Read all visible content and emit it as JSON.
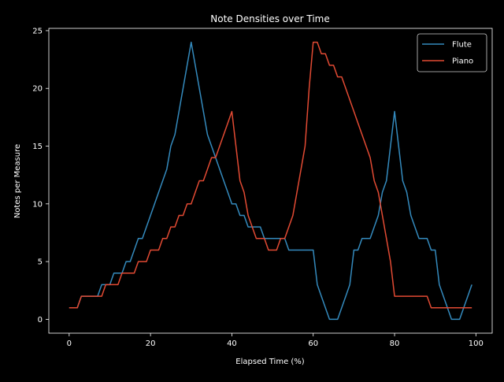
{
  "chart_data": {
    "type": "line",
    "title": "Note Densities over Time",
    "xlabel": "Elapsed Time (%)",
    "ylabel": "Notes per Measure",
    "xlim": [
      -5,
      104
    ],
    "ylim": [
      -1.2,
      25.2
    ],
    "xticks": [
      0,
      20,
      40,
      60,
      80,
      100
    ],
    "yticks": [
      0,
      5,
      10,
      15,
      20,
      25
    ],
    "grid": false,
    "legend": "top-right",
    "x": [
      0,
      1,
      2,
      3,
      4,
      5,
      6,
      7,
      8,
      9,
      10,
      11,
      12,
      13,
      14,
      15,
      16,
      17,
      18,
      19,
      20,
      21,
      22,
      23,
      24,
      25,
      26,
      27,
      28,
      29,
      30,
      31,
      32,
      33,
      34,
      35,
      36,
      37,
      38,
      39,
      40,
      41,
      42,
      43,
      44,
      45,
      46,
      47,
      48,
      49,
      50,
      51,
      52,
      53,
      54,
      55,
      56,
      57,
      58,
      59,
      60,
      61,
      62,
      63,
      64,
      65,
      66,
      67,
      68,
      69,
      70,
      71,
      72,
      73,
      74,
      75,
      76,
      77,
      78,
      79,
      80,
      81,
      82,
      83,
      84,
      85,
      86,
      87,
      88,
      89,
      90,
      91,
      92,
      93,
      94,
      95,
      96,
      97,
      98,
      99
    ],
    "series": [
      {
        "name": "Flute",
        "color": "#348abd",
        "values": [
          1,
          1,
          1,
          2,
          2,
          2,
          2,
          2,
          3,
          3,
          3,
          4,
          4,
          4,
          5,
          5,
          6,
          7,
          7,
          8,
          9,
          10,
          11,
          12,
          13,
          15,
          16,
          18,
          20,
          22,
          24,
          22,
          20,
          18,
          16,
          15,
          14,
          13,
          12,
          11,
          10,
          10,
          9,
          9,
          8,
          8,
          8,
          8,
          7,
          7,
          7,
          7,
          7,
          7,
          6,
          6,
          6,
          6,
          6,
          6,
          6,
          3,
          2,
          1,
          0,
          0,
          0,
          1,
          2,
          3,
          6,
          6,
          7,
          7,
          7,
          8,
          9,
          11,
          12,
          15,
          18,
          15,
          12,
          11,
          9,
          8,
          7,
          7,
          7,
          6,
          6,
          3,
          2,
          1,
          0,
          0,
          0,
          1,
          2,
          3
        ]
      },
      {
        "name": "Piano",
        "color": "#e24a33",
        "values": [
          1,
          1,
          1,
          2,
          2,
          2,
          2,
          2,
          2,
          3,
          3,
          3,
          3,
          4,
          4,
          4,
          4,
          5,
          5,
          5,
          6,
          6,
          6,
          7,
          7,
          8,
          8,
          9,
          9,
          10,
          10,
          11,
          12,
          12,
          13,
          14,
          14,
          15,
          16,
          17,
          18,
          15,
          12,
          11,
          9,
          8,
          7,
          7,
          7,
          6,
          6,
          6,
          7,
          7,
          8,
          9,
          11,
          13,
          15,
          20,
          24,
          24,
          23,
          23,
          22,
          22,
          21,
          21,
          20,
          19,
          18,
          17,
          16,
          15,
          14,
          12,
          11,
          9,
          7,
          5,
          2,
          2,
          2,
          2,
          2,
          2,
          2,
          2,
          2,
          1,
          1,
          1,
          1,
          1,
          1,
          1,
          1,
          1,
          1,
          1
        ]
      }
    ]
  }
}
